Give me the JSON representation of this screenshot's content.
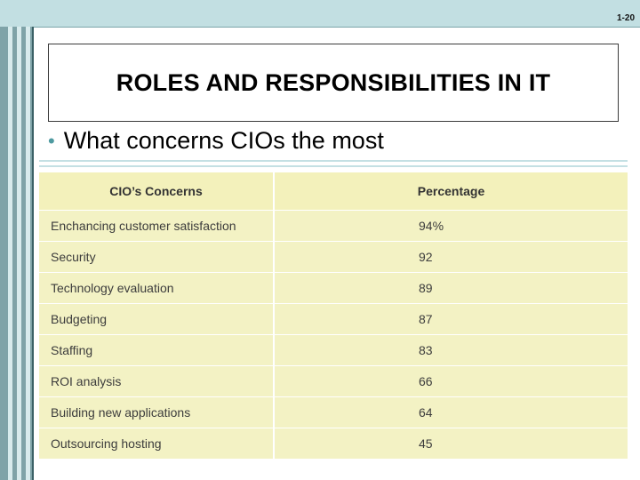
{
  "slide": {
    "page_number": "1-20",
    "title": "ROLES AND RESPONSIBILITIES IN IT",
    "bullet": "What concerns CIOs the most"
  },
  "table": {
    "headers": [
      "CIO’s Concerns",
      "Percentage"
    ],
    "rows": [
      {
        "concern": "Enchancing customer satisfaction",
        "percentage": "94%"
      },
      {
        "concern": "Security",
        "percentage": "92"
      },
      {
        "concern": "Technology evaluation",
        "percentage": "89"
      },
      {
        "concern": "Budgeting",
        "percentage": "87"
      },
      {
        "concern": "Staffing",
        "percentage": "83"
      },
      {
        "concern": "ROI analysis",
        "percentage": "66"
      },
      {
        "concern": "Building new applications",
        "percentage": "64"
      },
      {
        "concern": "Outsourcing hosting",
        "percentage": "45"
      }
    ]
  },
  "colors": {
    "accent": "#4e9aa0",
    "table_fill": "#f3f2c4",
    "top_bar": "#c2dfe2",
    "rail": "#7fa3a8"
  }
}
